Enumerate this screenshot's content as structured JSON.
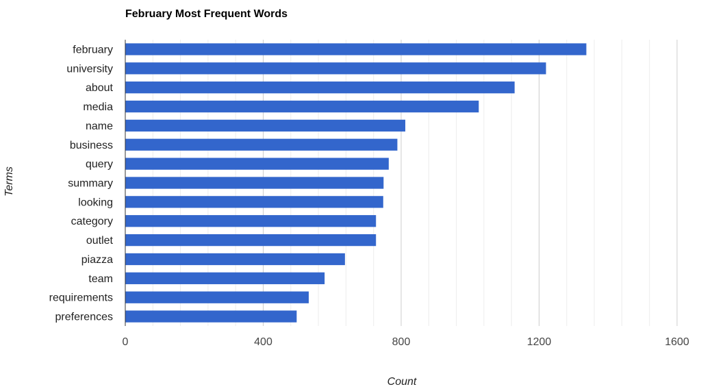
{
  "chart_data": {
    "type": "bar",
    "orientation": "horizontal",
    "title": "February Most Frequent Words",
    "xlabel": "Count",
    "ylabel": "Terms",
    "categories": [
      "february",
      "university",
      "about",
      "media",
      "name",
      "business",
      "query",
      "summary",
      "looking",
      "category",
      "outlet",
      "piazza",
      "team",
      "requirements",
      "preferences"
    ],
    "values": [
      1337,
      1220,
      1129,
      1025,
      812,
      789,
      764,
      749,
      748,
      727,
      727,
      637,
      578,
      532,
      497
    ],
    "xlim": [
      0,
      1600
    ],
    "xticks": [
      "0",
      "400",
      "800",
      "1200",
      "1600"
    ],
    "grid": true,
    "legend": "none",
    "bar_color": "#3366cc"
  }
}
